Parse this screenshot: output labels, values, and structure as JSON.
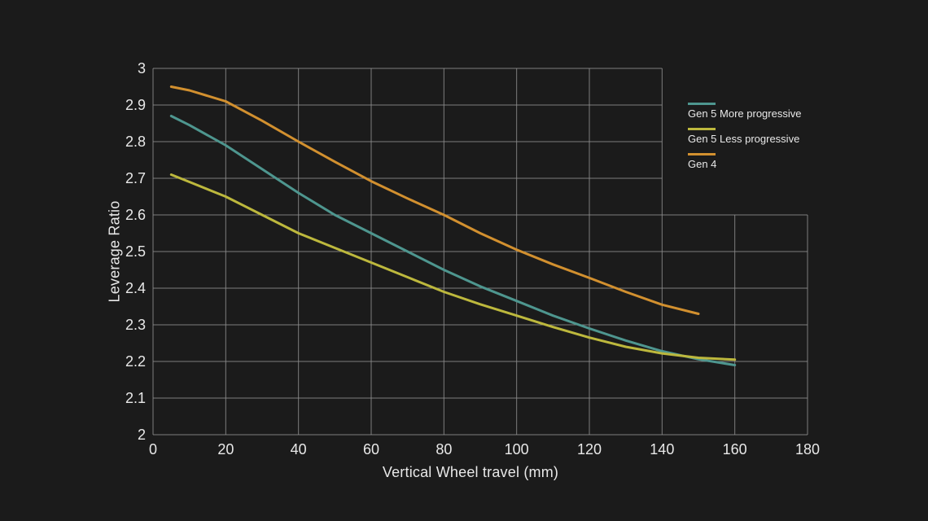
{
  "colors": {
    "background": "#1B1B1B",
    "grid": "#8E8E8E",
    "text": "#E8E8E8"
  },
  "chart_data": {
    "type": "line",
    "title": "",
    "xlabel": "Vertical Wheel travel (mm)",
    "ylabel": "Leverage Ratio",
    "xlim": [
      0,
      180
    ],
    "ylim": [
      2,
      3
    ],
    "x_ticks": [
      0,
      20,
      40,
      60,
      80,
      100,
      120,
      140,
      160,
      180
    ],
    "x_tick_labels": [
      "0",
      "20",
      "40",
      "60",
      "80",
      "100",
      "120",
      "140",
      "160",
      "180"
    ],
    "y_ticks": [
      2,
      2.1,
      2.2,
      2.3,
      2.4,
      2.5,
      2.6,
      2.7,
      2.8,
      2.9,
      3
    ],
    "y_tick_labels": [
      "2",
      "2.1",
      "2.2",
      "2.3",
      "2.4",
      "2.5",
      "2.6",
      "2.7",
      "2.8",
      "2.9",
      "3"
    ],
    "grid": true,
    "grid_notch": {
      "beyond_x": 140,
      "above_y": 2.6
    },
    "legend_position": "upper-right-notch",
    "series": [
      {
        "name": "Gen 5 More progressive",
        "color": "#4E968F",
        "x": [
          5,
          10,
          20,
          30,
          40,
          50,
          60,
          70,
          80,
          90,
          100,
          110,
          120,
          130,
          140,
          150,
          160
        ],
        "y": [
          2.87,
          2.845,
          2.79,
          2.725,
          2.66,
          2.6,
          2.55,
          2.5,
          2.45,
          2.405,
          2.365,
          2.325,
          2.29,
          2.257,
          2.228,
          2.206,
          2.19
        ]
      },
      {
        "name": "Gen 5 Less progressive",
        "color": "#BDB83D",
        "x": [
          5,
          10,
          20,
          30,
          40,
          50,
          60,
          70,
          80,
          90,
          100,
          110,
          120,
          130,
          140,
          150,
          160
        ],
        "y": [
          2.71,
          2.69,
          2.65,
          2.6,
          2.55,
          2.51,
          2.47,
          2.43,
          2.39,
          2.356,
          2.325,
          2.294,
          2.265,
          2.24,
          2.222,
          2.21,
          2.205
        ]
      },
      {
        "name": "Gen 4",
        "color": "#D2902F",
        "x": [
          5,
          10,
          20,
          30,
          40,
          50,
          60,
          70,
          80,
          90,
          100,
          110,
          120,
          130,
          140,
          150
        ],
        "y": [
          2.95,
          2.94,
          2.91,
          2.857,
          2.8,
          2.745,
          2.692,
          2.645,
          2.6,
          2.55,
          2.505,
          2.465,
          2.428,
          2.39,
          2.355,
          2.33
        ]
      }
    ]
  }
}
